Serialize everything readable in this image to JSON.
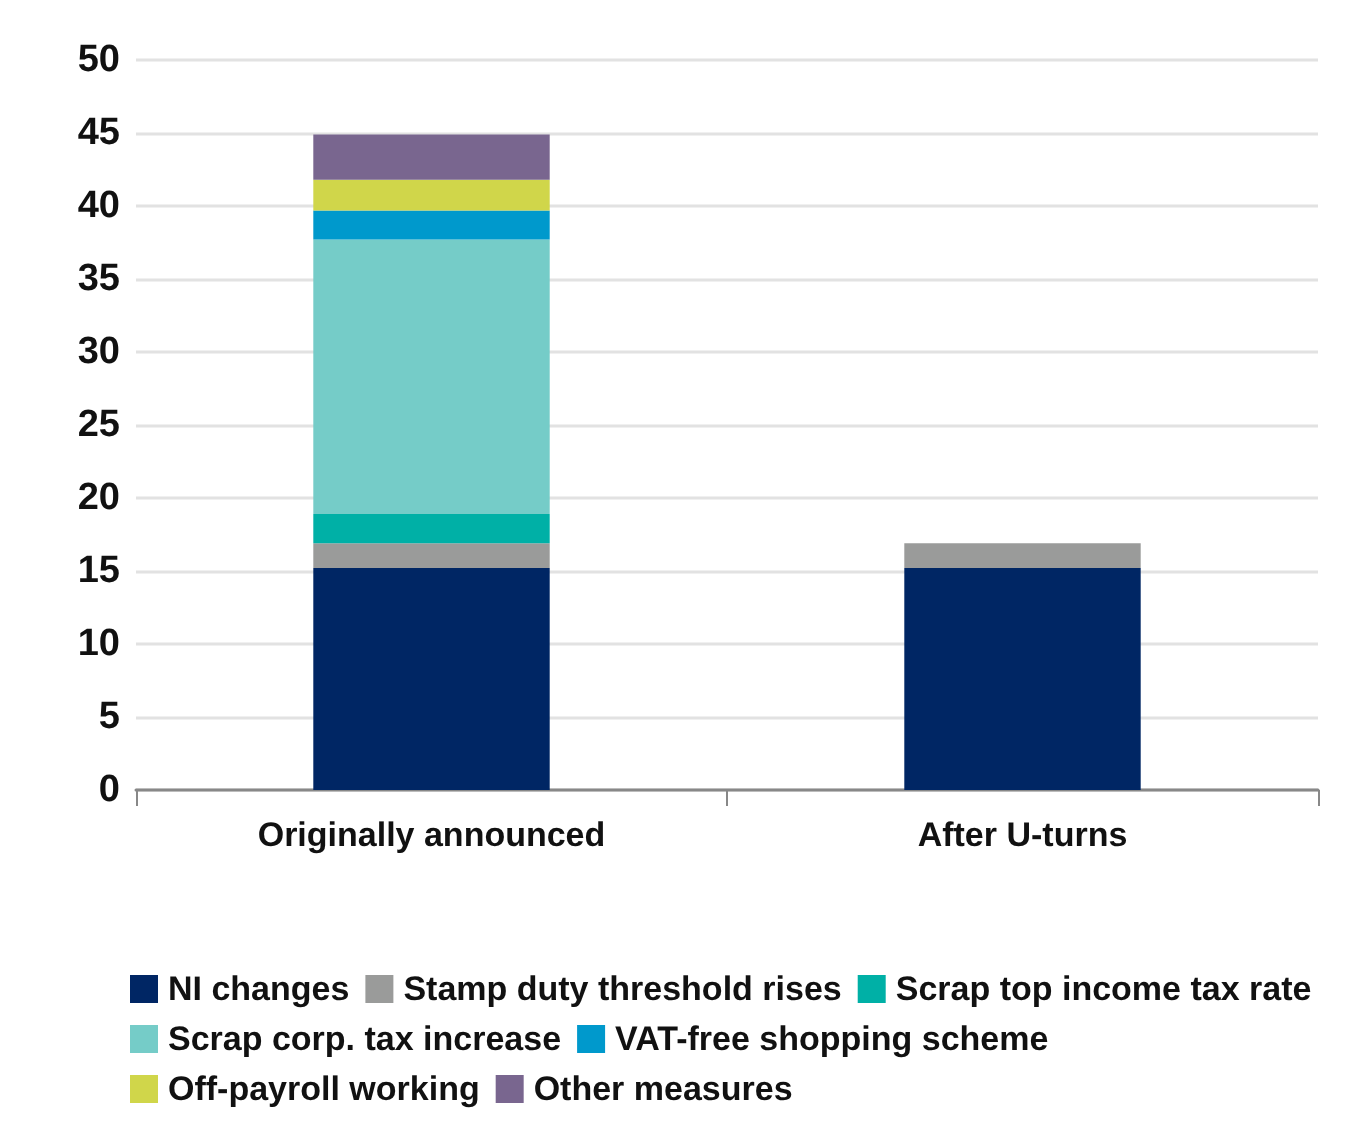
{
  "chart_data": {
    "type": "bar",
    "stacked": true,
    "categories": [
      "Originally announced",
      "After U-turns"
    ],
    "series": [
      {
        "name": "NI changes",
        "color": "#002664",
        "values": [
          15.2,
          15.2
        ]
      },
      {
        "name": "Stamp duty threshold rises",
        "color": "#9a9b9a",
        "values": [
          1.7,
          1.7
        ]
      },
      {
        "name": "Scrap top income tax rate",
        "color": "#00b0a6",
        "values": [
          2.0,
          0
        ]
      },
      {
        "name": "Scrap corp. tax increase",
        "color": "#75ccc8",
        "values": [
          18.8,
          0
        ]
      },
      {
        "name": "VAT-free shopping scheme",
        "color": "#0099cc",
        "values": [
          2.0,
          0
        ]
      },
      {
        "name": "Off-payroll working",
        "color": "#d0d64a",
        "values": [
          2.1,
          0
        ]
      },
      {
        "name": "Other measures",
        "color": "#79668f",
        "values": [
          3.1,
          0
        ]
      }
    ],
    "ylim": [
      0,
      50
    ],
    "yticks": [
      0,
      5,
      10,
      15,
      20,
      25,
      30,
      35,
      40,
      45,
      50
    ],
    "grid": "y",
    "legend": "bottom"
  }
}
